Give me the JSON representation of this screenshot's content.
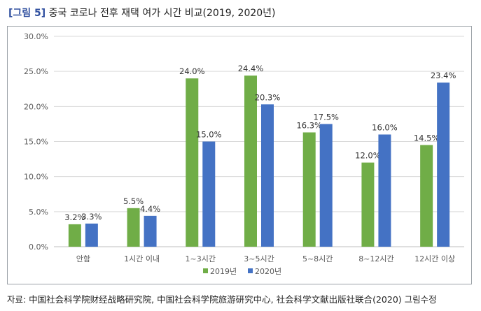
{
  "figure": {
    "label": "[그림 5]",
    "title": "중국 코로나 전후 재택 여가 시간 비교(2019, 2020년)"
  },
  "source_note": "자료: 中国社会科学院财经战略研究院, 中国社会科学院旅游研究中心, 社会科学文献出版社联合(2020) 그림수정",
  "chart_data": {
    "type": "bar",
    "title": "",
    "xlabel": "",
    "ylabel": "",
    "categories": [
      "안함",
      "1시간 이내",
      "1~3시간",
      "3~5시간",
      "5~8시간",
      "8~12시간",
      "12시간 이상"
    ],
    "series": [
      {
        "name": "2019년",
        "color": "#70ad47",
        "values": [
          3.2,
          5.5,
          24.0,
          24.4,
          16.3,
          12.0,
          14.5
        ],
        "labels": [
          "3.2%",
          "5.5%",
          "24.0%",
          "24.4%",
          "16.3%",
          "12.0%",
          "14.5%"
        ]
      },
      {
        "name": "2020년",
        "color": "#4472c4",
        "values": [
          3.3,
          4.4,
          15.0,
          20.3,
          17.5,
          16.0,
          23.4
        ],
        "labels": [
          "3.3%",
          "4.4%",
          "15.0%",
          "20.3%",
          "17.5%",
          "16.0%",
          "23.4%"
        ]
      }
    ],
    "ylim": [
      0,
      30
    ],
    "yticks": [
      0,
      5,
      10,
      15,
      20,
      25,
      30
    ],
    "ytick_labels": [
      "0.0%",
      "5.0%",
      "10.0%",
      "15.0%",
      "20.0%",
      "25.0%",
      "30.0%"
    ],
    "grid": true,
    "legend_position": "bottom"
  }
}
